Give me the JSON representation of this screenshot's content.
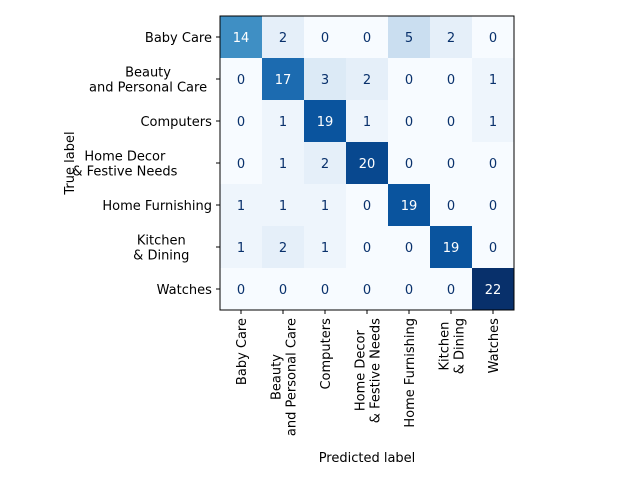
{
  "chart_data": {
    "type": "heatmap",
    "title": "",
    "xlabel": "Predicted label",
    "ylabel": "True label",
    "colormap": "Blues",
    "rows": [
      "Baby Care",
      "Beauty\nand Personal Care",
      "Computers",
      "Home Decor\n& Festive Needs",
      "Home Furnishing",
      "Kitchen\n& Dining",
      "Watches"
    ],
    "cols": [
      "Baby Care",
      "Beauty\nand Personal Care",
      "Computers",
      "Home Decor\n& Festive Needs",
      "Home Furnishing",
      "Kitchen\n& Dining",
      "Watches"
    ],
    "values": [
      [
        14,
        2,
        0,
        0,
        5,
        2,
        0
      ],
      [
        0,
        17,
        3,
        2,
        0,
        0,
        1
      ],
      [
        0,
        1,
        19,
        1,
        0,
        0,
        1
      ],
      [
        0,
        1,
        2,
        20,
        0,
        0,
        0
      ],
      [
        1,
        1,
        1,
        0,
        19,
        0,
        0
      ],
      [
        1,
        2,
        1,
        0,
        0,
        19,
        0
      ],
      [
        0,
        0,
        0,
        0,
        0,
        0,
        22
      ]
    ],
    "grid": false
  }
}
